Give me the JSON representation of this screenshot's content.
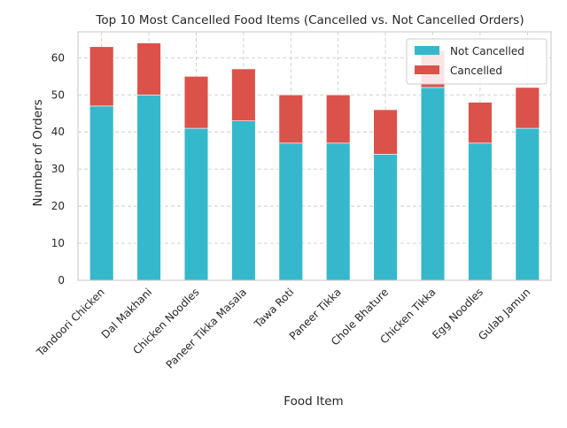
{
  "chart_data": {
    "type": "bar",
    "stacked": true,
    "title": "Top 10 Most Cancelled Food Items (Cancelled vs. Not Cancelled Orders)",
    "xlabel": "Food Item",
    "ylabel": "Number of Orders",
    "ylim": [
      0,
      67
    ],
    "yticks": [
      0,
      10,
      20,
      30,
      40,
      50,
      60
    ],
    "grid": true,
    "legend_position": "upper right",
    "categories": [
      "Tandoori Chicken",
      "Dal Makhani",
      "Chicken Noodles",
      "Paneer Tikka Masala",
      "Tawa Roti",
      "Paneer Tikka",
      "Chole Bhature",
      "Chicken Tikka",
      "Egg Noodles",
      "Gulab Jamun"
    ],
    "series": [
      {
        "name": "Not Cancelled",
        "color": "#36b8cc",
        "values": [
          47,
          50,
          41,
          43,
          37,
          37,
          34,
          52,
          37,
          41
        ]
      },
      {
        "name": "Cancelled",
        "color": "#db524a",
        "values": [
          16,
          14,
          14,
          14,
          13,
          13,
          12,
          10,
          11,
          11
        ]
      }
    ]
  }
}
